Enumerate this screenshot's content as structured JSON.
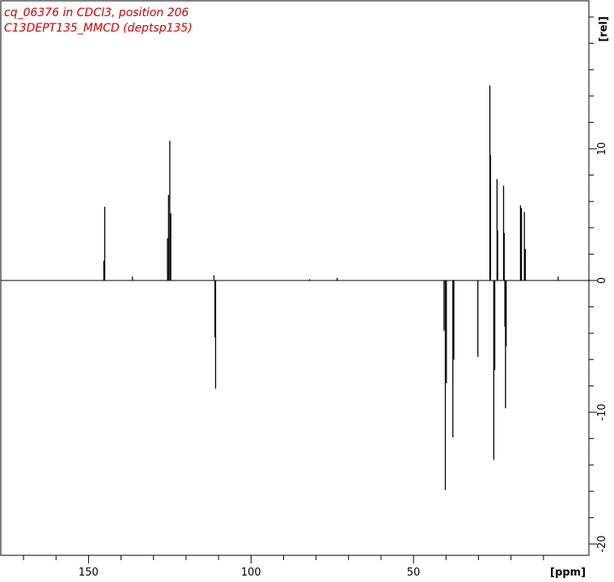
{
  "colors": {
    "title": "#cc0000",
    "trace": "#000000",
    "frame": "#000000",
    "background": "#ffffff"
  },
  "chart_data": {
    "type": "line",
    "title_lines": [
      "cq_06376 in CDCl3, position 206",
      "C13DEPT135_MMCD (deptsp135)"
    ],
    "xlabel": "[ppm]",
    "ylabel": "[rel]",
    "xlim": [
      174.5,
      3
    ],
    "ylim": [
      -21,
      21
    ],
    "x_axis_reversed": true,
    "x_major_ticks": [
      150,
      100,
      50
    ],
    "x_major_tick_labels": [
      "150",
      "100",
      "50"
    ],
    "x_minor_tick_step": 10,
    "y_major_ticks": [
      10,
      0,
      -10,
      -20
    ],
    "y_major_tick_labels": [
      "10",
      "0",
      "-10",
      "-20"
    ],
    "y_minor_tick_step": 2,
    "grid": false,
    "legend": "none",
    "series": [
      {
        "peaks": [
          {
            "x": 145.3,
            "y": 1.5
          },
          {
            "x": 145.0,
            "y": 5.6
          },
          {
            "x": 125.7,
            "y": 3.2
          },
          {
            "x": 125.4,
            "y": 6.5
          },
          {
            "x": 125.0,
            "y": 10.6
          },
          {
            "x": 124.7,
            "y": 5.1
          },
          {
            "x": 136.5,
            "y": 0.3
          },
          {
            "x": 111.4,
            "y": 0.4
          },
          {
            "x": 111.1,
            "y": -4.3
          },
          {
            "x": 110.9,
            "y": -8.2
          },
          {
            "x": 40.6,
            "y": -3.8
          },
          {
            "x": 40.2,
            "y": -15.9
          },
          {
            "x": 39.9,
            "y": -7.8
          },
          {
            "x": 37.9,
            "y": -11.9
          },
          {
            "x": 37.6,
            "y": -6.0
          },
          {
            "x": 30.2,
            "y": -5.8
          },
          {
            "x": 26.5,
            "y": 14.8
          },
          {
            "x": 26.3,
            "y": 9.5
          },
          {
            "x": 25.3,
            "y": -13.6
          },
          {
            "x": 25.0,
            "y": -6.8
          },
          {
            "x": 24.3,
            "y": 7.7
          },
          {
            "x": 24.1,
            "y": 3.8
          },
          {
            "x": 22.3,
            "y": 7.2
          },
          {
            "x": 22.1,
            "y": 3.6
          },
          {
            "x": 21.9,
            "y": -3.5
          },
          {
            "x": 21.7,
            "y": -9.7
          },
          {
            "x": 21.5,
            "y": -5.0
          },
          {
            "x": 17.1,
            "y": 5.7
          },
          {
            "x": 16.8,
            "y": 5.5
          },
          {
            "x": 15.9,
            "y": 5.2
          },
          {
            "x": 15.6,
            "y": 2.4
          },
          {
            "x": 73.5,
            "y": 0.2
          },
          {
            "x": 82.0,
            "y": 0.1
          },
          {
            "x": 5.5,
            "y": 0.3
          }
        ]
      }
    ]
  }
}
